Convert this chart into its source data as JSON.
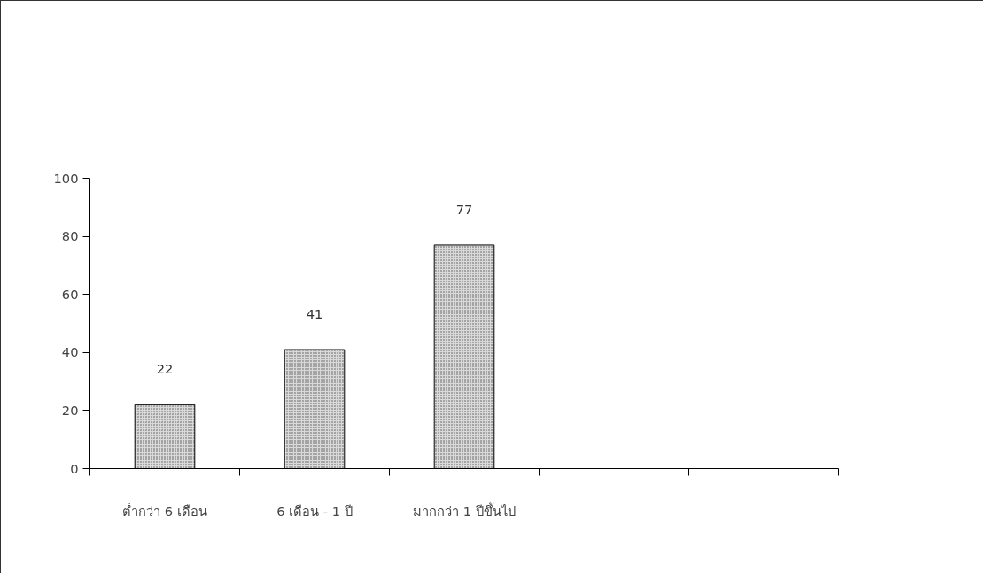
{
  "chart_data": {
    "type": "bar",
    "categories": [
      "ต่ำกว่า 6 เดือน",
      "6 เดือน - 1 ปี",
      "มากกว่า 1 ปีขึ้นไป",
      null,
      null
    ],
    "values": [
      22,
      41,
      77,
      null,
      null
    ],
    "color": "#d9d9d9",
    "ylim": [
      0,
      100
    ],
    "yticks": [
      0,
      20,
      40,
      60,
      80,
      100
    ],
    "data_labels": true,
    "grid": false
  }
}
